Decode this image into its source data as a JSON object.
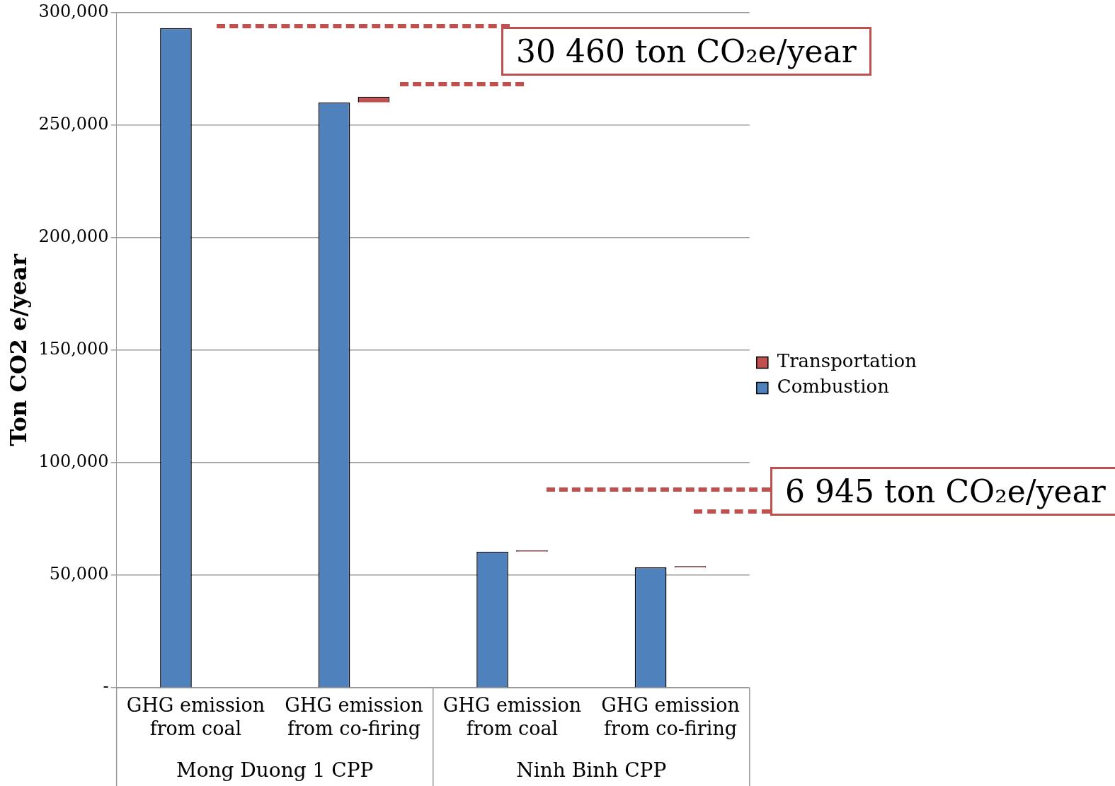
{
  "chart_data": {
    "type": "bar",
    "ylabel": "Ton CO2 e/year",
    "categories": [
      "GHG emission from coal",
      "GHG emission from co-firing",
      "GHG emission from coal",
      "GHG emission from co-firing"
    ],
    "series": [
      {
        "name": "Combustion",
        "color": "#4f81bd",
        "values": [
          293000,
          260000,
          60500,
          53500
        ]
      },
      {
        "name": "Transportation",
        "color": "#c0504d",
        "values": [
          null,
          2500,
          500,
          500
        ],
        "base": [
          null,
          260000,
          60500,
          53500
        ]
      }
    ],
    "ylim": [
      0,
      300000
    ],
    "yticks": [
      {
        "value": 0,
        "label": "-"
      },
      {
        "value": 50000,
        "label": "50,000"
      },
      {
        "value": 100000,
        "label": "100,000"
      },
      {
        "value": 150000,
        "label": "150,000"
      },
      {
        "value": 200000,
        "label": "200,000"
      },
      {
        "value": 250000,
        "label": "250,000"
      },
      {
        "value": 300000,
        "label": "300,000"
      }
    ],
    "grid": "y",
    "legend": "right",
    "annotations": [
      "Mong Duong 1 CPP",
      "Ninh Binh CPP",
      "30 460 ton CO₂e/year",
      "6 945 ton CO₂e/year"
    ]
  }
}
